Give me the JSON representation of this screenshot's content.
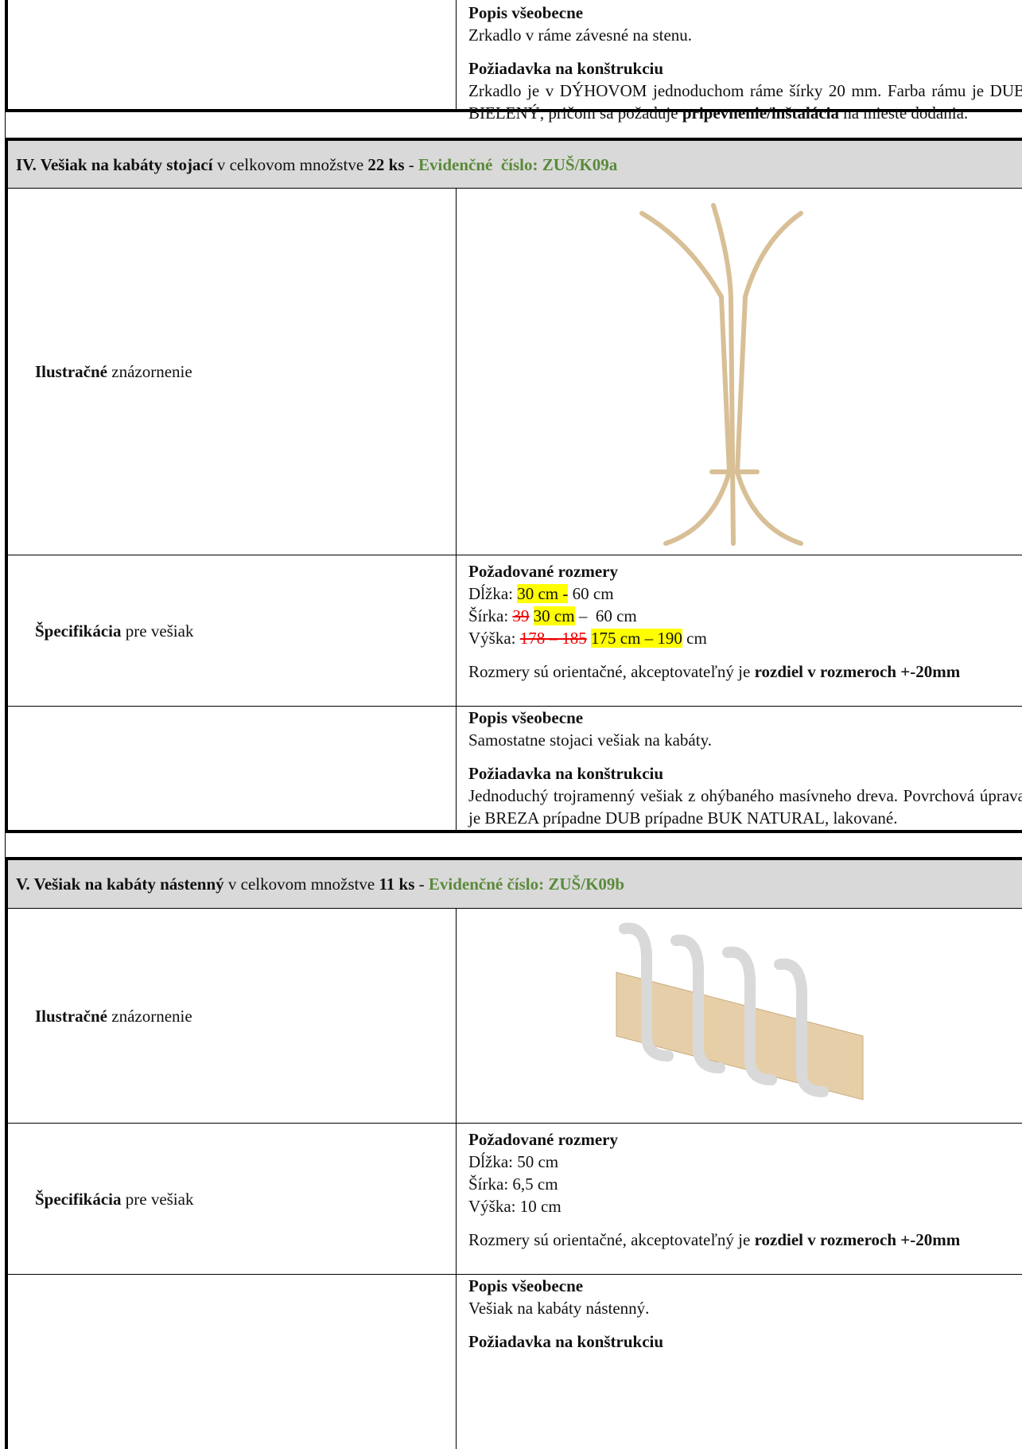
{
  "top": {
    "description_title": "Popis všeobecne",
    "description": "Zrkadlo v ráme závesné na stenu.",
    "construction_title": "Požiadavka na konštrukciu",
    "construction": [
      "Zrkadlo je v DÝHOVOM jednoduchom ráme šírky 20 mm. Farba rámu je DUB BIELENÝ, pričom sa požaduje",
      "pripevnenie/inštalácia",
      "na mieste dodania."
    ]
  },
  "sections": [
    {
      "header": [
        "IV. Vešiak na kabáty stojací",
        "v celkovom množstve",
        "22 ks",
        "-",
        "Evidenčné  číslo: ZUŠ/K09a"
      ],
      "illustration_label": [
        "Ilustračné",
        "znázornenie"
      ],
      "spec_label": [
        "Špecifikácia",
        "pre vešiak"
      ],
      "dimensions_title": "Požadované rozmery",
      "dimensions": [
        [
          "Dĺžka:",
          "30 cm -",
          "60 cm"
        ],
        [
          "Šírka:",
          "39",
          "30 cm",
          "–  60 cm"
        ],
        [
          "Výška:",
          "178 – 185",
          "175 cm – 190",
          "cm"
        ]
      ],
      "note": [
        "Rozmery sú orientačné, akceptovateľný je",
        "rozdiel v rozmeroch +-20mm"
      ],
      "description_title": "Popis všeobecne",
      "description": "Samostatne stojaci vešiak na kabáty.",
      "construction_title": "Požiadavka na konštrukciu",
      "construction": "Jednoduchý trojramenný vešiak z ohýbaného masívneho dreva. Povrchová úprava je BREZA prípadne DUB prípadne BUK NATURAL, lakované."
    },
    {
      "header": [
        "V. Vešiak na kabáty nástenný",
        "v celkovom množstve",
        "11 ks",
        "-",
        "Evidenčné číslo: ZUŠ/K09b"
      ],
      "illustration_label": [
        "Ilustračné",
        "znázornenie"
      ],
      "spec_label": [
        "Špecifikácia",
        "pre vešiak"
      ],
      "dimensions_title": "Požadované rozmery",
      "dimensions": [
        "Dĺžka: 50 cm",
        "Šírka: 6,5 cm",
        "Výška: 10 cm"
      ],
      "note": [
        "Rozmery sú orientačné, akceptovateľný je",
        "rozdiel v rozmeroch +-20mm"
      ],
      "description_title": "Popis všeobecne",
      "description": "Vešiak na kabáty nástenný.",
      "construction_title": "Požiadavka na konštrukciu"
    }
  ]
}
